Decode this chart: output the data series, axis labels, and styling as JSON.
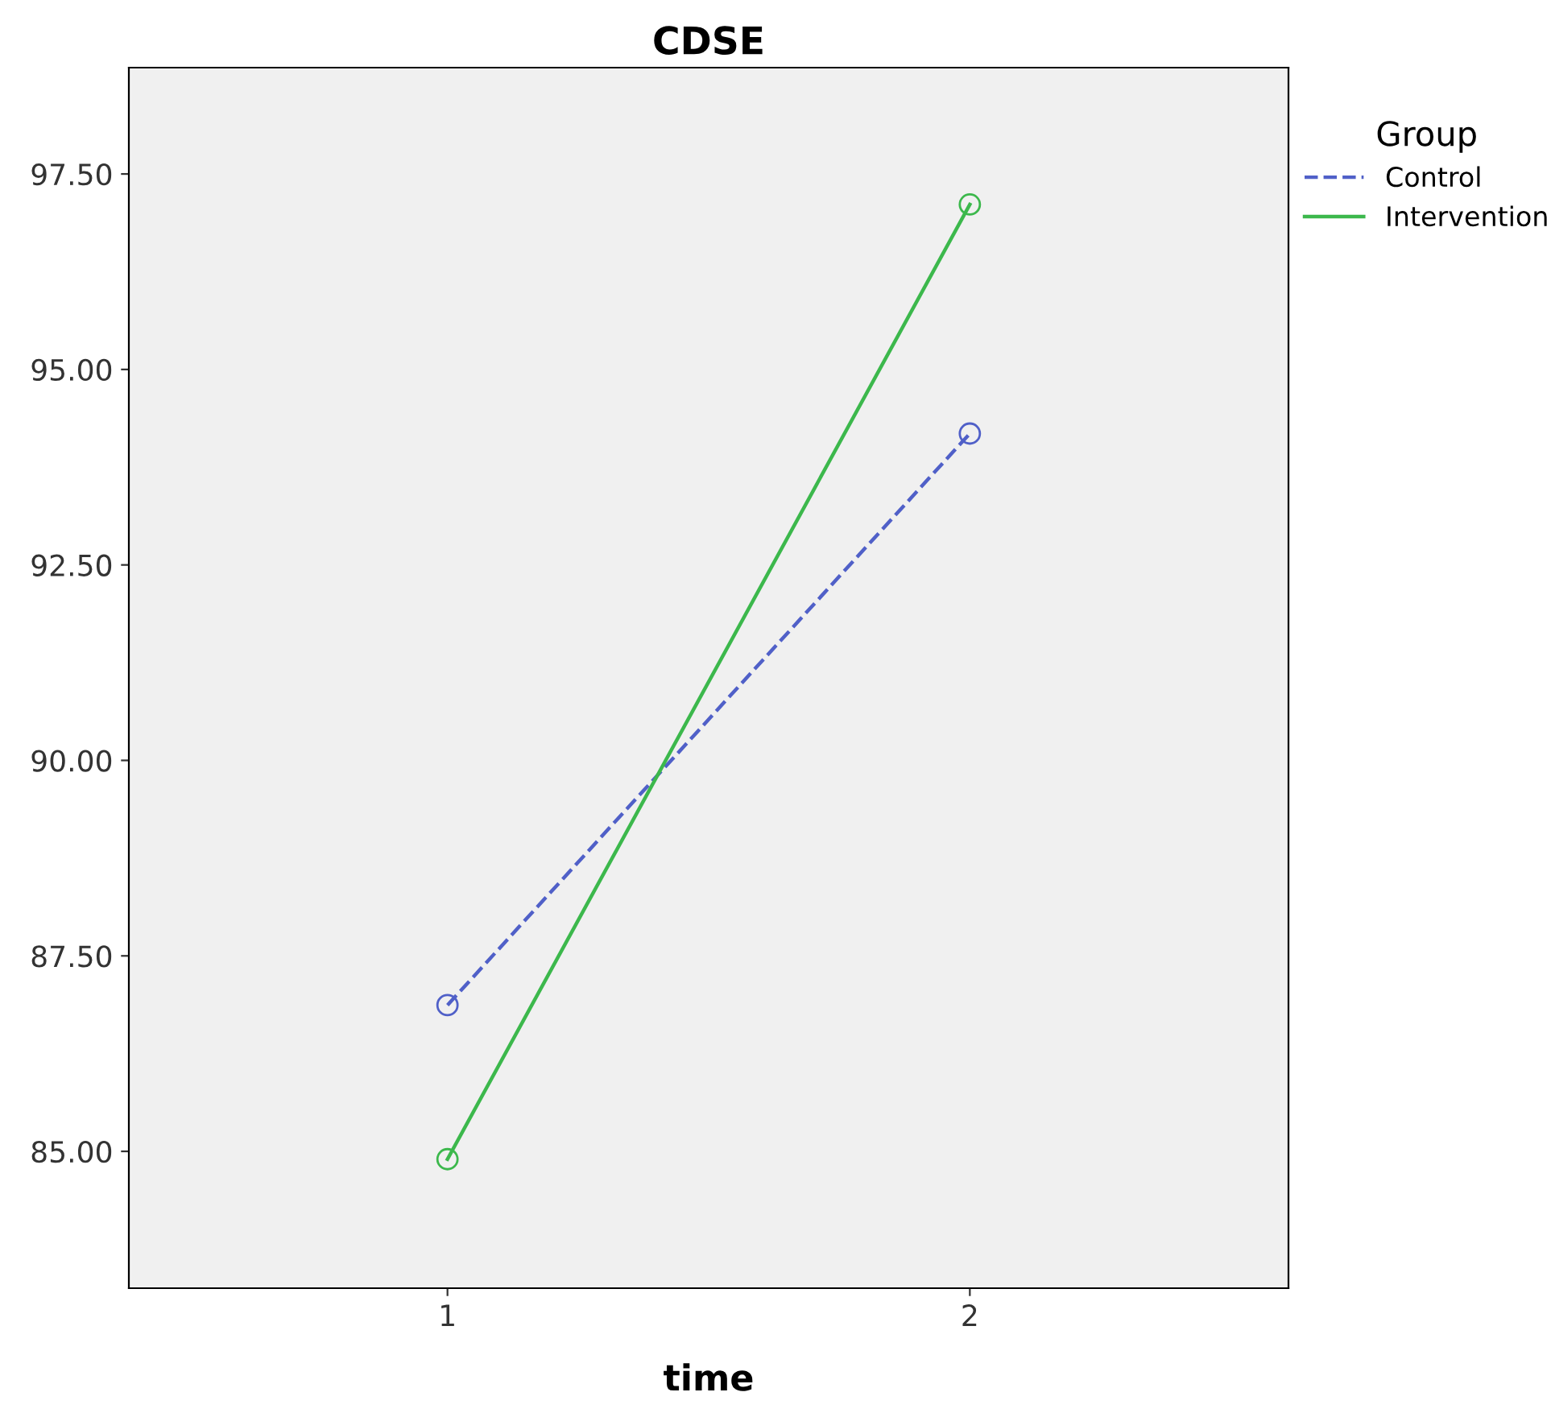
{
  "chart_data": {
    "type": "line",
    "title": "CDSE",
    "xlabel": "time",
    "legend_title": "Group",
    "x": [
      1,
      2
    ],
    "series": [
      {
        "name": "Control",
        "color": "#5060c8",
        "values": [
          86.87,
          94.18
        ],
        "line_style": "dashed"
      },
      {
        "name": "Intervention",
        "color": "#3cb84c",
        "values": [
          84.9,
          97.11
        ],
        "line_style": "solid"
      }
    ],
    "xlim": [
      0.39,
      2.61
    ],
    "xticks": [
      1,
      2
    ],
    "ylim": [
      83.25,
      98.86
    ],
    "yticks": [
      {
        "value": 85,
        "label": "85.00"
      },
      {
        "value": 87.5,
        "label": "87.50"
      },
      {
        "value": 90,
        "label": "90.00"
      },
      {
        "value": 92.5,
        "label": "92.50"
      },
      {
        "value": 95,
        "label": "95.00"
      },
      {
        "value": 97.5,
        "label": "97.50"
      }
    ],
    "marker": "circle",
    "grid": false,
    "legend": "top right"
  }
}
